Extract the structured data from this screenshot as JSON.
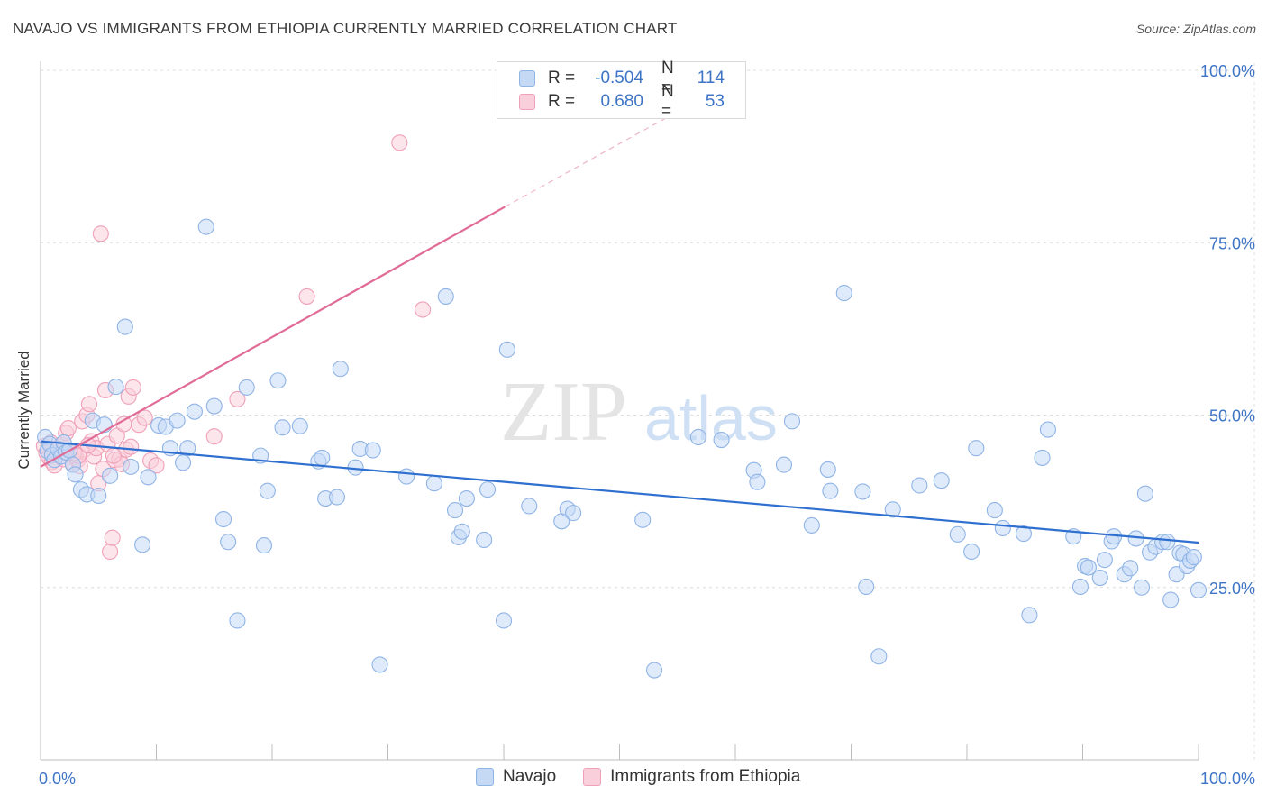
{
  "title": "NAVAJO VS IMMIGRANTS FROM ETHIOPIA CURRENTLY MARRIED CORRELATION CHART",
  "source": "Source: ZipAtlas.com",
  "watermark": {
    "zip": "ZIP",
    "atlas": "atlas"
  },
  "legend": {
    "rows": [
      {
        "r_label": "R =",
        "r_value": "-0.504",
        "n_label": "N =",
        "n_value": "114",
        "color": "#8fb4e6",
        "fill": "#c5d9f5"
      },
      {
        "r_label": "R =",
        "r_value": "0.680",
        "n_label": "N =",
        "n_value": "53",
        "color": "#f0a0b8",
        "fill": "#f9cfdb"
      }
    ]
  },
  "bottom_legend": [
    {
      "label": "Navajo",
      "color": "#8fb4e6",
      "fill": "#c5d9f5"
    },
    {
      "label": "Immigrants from Ethiopia",
      "color": "#f0a0b8",
      "fill": "#f9cfdb"
    }
  ],
  "chart_data": {
    "type": "scatter",
    "title": "NAVAJO VS IMMIGRANTS FROM ETHIOPIA CURRENTLY MARRIED CORRELATION CHART",
    "xlabel": "",
    "ylabel": "Currently Married",
    "xlim": [
      0,
      100
    ],
    "ylim": [
      0,
      100
    ],
    "x_tick_labels": [
      "0.0%",
      "100.0%"
    ],
    "y_tick_labels": [
      "25.0%",
      "50.0%",
      "75.0%",
      "100.0%"
    ],
    "y_ticks": [
      25,
      50,
      75,
      100
    ],
    "grid": true,
    "series": [
      {
        "name": "Navajo",
        "color": "#3d74c6",
        "point_fill": "#c5d9f5",
        "point_stroke": "#8fb4e6",
        "trend": {
          "x": [
            0,
            100
          ],
          "y": [
            46.2,
            31.5
          ],
          "color": "#2f6fd0"
        },
        "points": [
          [
            0.4,
            46.8
          ],
          [
            0.6,
            44.8
          ],
          [
            0.8,
            45.8
          ],
          [
            1.0,
            44.2
          ],
          [
            1.2,
            43.5
          ],
          [
            1.5,
            45.1
          ],
          [
            1.8,
            44.0
          ],
          [
            2.0,
            46.0
          ],
          [
            2.2,
            44.6
          ],
          [
            2.5,
            44.9
          ],
          [
            2.8,
            42.8
          ],
          [
            3.0,
            41.4
          ],
          [
            3.5,
            39.2
          ],
          [
            4.0,
            38.5
          ],
          [
            4.5,
            49.2
          ],
          [
            5.0,
            38.3
          ],
          [
            5.5,
            48.6
          ],
          [
            6.0,
            41.2
          ],
          [
            6.5,
            54.1
          ],
          [
            7.3,
            62.8
          ],
          [
            7.8,
            42.5
          ],
          [
            8.8,
            31.2
          ],
          [
            9.3,
            41.0
          ],
          [
            10.2,
            48.5
          ],
          [
            10.8,
            48.3
          ],
          [
            11.2,
            45.2
          ],
          [
            11.8,
            49.2
          ],
          [
            12.3,
            43.1
          ],
          [
            12.7,
            45.2
          ],
          [
            13.3,
            50.5
          ],
          [
            14.3,
            77.3
          ],
          [
            15.0,
            51.3
          ],
          [
            15.8,
            34.9
          ],
          [
            16.2,
            31.6
          ],
          [
            17.0,
            20.2
          ],
          [
            17.8,
            54.0
          ],
          [
            19.0,
            44.1
          ],
          [
            19.3,
            31.1
          ],
          [
            19.6,
            39.0
          ],
          [
            20.5,
            55.0
          ],
          [
            20.9,
            48.2
          ],
          [
            22.4,
            48.4
          ],
          [
            24.0,
            43.3
          ],
          [
            24.3,
            43.8
          ],
          [
            24.6,
            37.9
          ],
          [
            25.6,
            38.1
          ],
          [
            25.9,
            56.7
          ],
          [
            27.2,
            42.4
          ],
          [
            27.6,
            45.1
          ],
          [
            28.7,
            44.9
          ],
          [
            29.3,
            13.8
          ],
          [
            31.6,
            41.1
          ],
          [
            34.0,
            40.1
          ],
          [
            35.0,
            67.2
          ],
          [
            35.8,
            36.2
          ],
          [
            36.1,
            32.3
          ],
          [
            36.4,
            33.1
          ],
          [
            36.8,
            37.9
          ],
          [
            38.3,
            31.9
          ],
          [
            38.6,
            39.2
          ],
          [
            40.0,
            20.2
          ],
          [
            40.3,
            59.5
          ],
          [
            42.2,
            36.8
          ],
          [
            45.0,
            34.6
          ],
          [
            45.5,
            36.4
          ],
          [
            46.0,
            35.8
          ],
          [
            52.0,
            34.8
          ],
          [
            53.0,
            13.0
          ],
          [
            56.8,
            46.8
          ],
          [
            58.8,
            46.4
          ],
          [
            61.6,
            42.0
          ],
          [
            61.9,
            40.3
          ],
          [
            64.2,
            42.8
          ],
          [
            64.9,
            49.1
          ],
          [
            66.6,
            34.0
          ],
          [
            68.0,
            42.1
          ],
          [
            68.2,
            39.0
          ],
          [
            69.4,
            67.7
          ],
          [
            71.0,
            38.9
          ],
          [
            71.3,
            25.1
          ],
          [
            72.4,
            15.0
          ],
          [
            73.6,
            36.3
          ],
          [
            75.9,
            39.8
          ],
          [
            77.8,
            40.5
          ],
          [
            79.2,
            32.7
          ],
          [
            80.4,
            30.2
          ],
          [
            80.8,
            45.2
          ],
          [
            82.4,
            36.2
          ],
          [
            83.1,
            33.6
          ],
          [
            84.9,
            32.8
          ],
          [
            85.4,
            21.0
          ],
          [
            86.5,
            43.8
          ],
          [
            87.0,
            47.9
          ],
          [
            89.2,
            32.4
          ],
          [
            89.8,
            25.1
          ],
          [
            90.2,
            28.1
          ],
          [
            90.5,
            27.9
          ],
          [
            91.5,
            26.4
          ],
          [
            91.9,
            29.0
          ],
          [
            92.5,
            31.7
          ],
          [
            92.7,
            32.4
          ],
          [
            93.6,
            26.9
          ],
          [
            94.1,
            27.8
          ],
          [
            94.6,
            32.1
          ],
          [
            95.1,
            25.0
          ],
          [
            95.4,
            38.6
          ],
          [
            95.8,
            30.1
          ],
          [
            96.3,
            30.9
          ],
          [
            96.9,
            31.6
          ],
          [
            97.3,
            31.6
          ],
          [
            97.6,
            23.2
          ],
          [
            98.1,
            26.9
          ],
          [
            98.4,
            30.0
          ],
          [
            98.7,
            29.8
          ],
          [
            99.0,
            28.1
          ],
          [
            99.3,
            28.9
          ],
          [
            99.6,
            29.4
          ],
          [
            100.0,
            24.6
          ]
        ]
      },
      {
        "name": "Immigrants from Ethiopia",
        "color": "#e06b96",
        "point_fill": "#f9cfdb",
        "point_stroke": "#f0a0b8",
        "trend": {
          "x": [
            0,
            40.1
          ],
          "y": [
            42.5,
            80.2
          ],
          "dashed_to": {
            "x": 55,
            "y": 94.0
          },
          "color": "#e06b96"
        },
        "points": [
          [
            0.3,
            45.5
          ],
          [
            0.5,
            44.5
          ],
          [
            0.7,
            43.9
          ],
          [
            0.9,
            46.0
          ],
          [
            1.0,
            43.2
          ],
          [
            1.2,
            42.7
          ],
          [
            1.4,
            44.2
          ],
          [
            1.6,
            45.1
          ],
          [
            1.8,
            45.7
          ],
          [
            2.0,
            43.6
          ],
          [
            2.2,
            47.4
          ],
          [
            2.4,
            48.1
          ],
          [
            2.6,
            44.8
          ],
          [
            2.8,
            42.9
          ],
          [
            3.0,
            44.0
          ],
          [
            3.2,
            43.5
          ],
          [
            3.4,
            42.6
          ],
          [
            3.6,
            49.1
          ],
          [
            3.8,
            45.0
          ],
          [
            4.0,
            50.0
          ],
          [
            4.2,
            51.6
          ],
          [
            4.4,
            46.2
          ],
          [
            4.6,
            44.0
          ],
          [
            4.8,
            45.2
          ],
          [
            5.0,
            40.1
          ],
          [
            5.2,
            76.3
          ],
          [
            5.4,
            42.2
          ],
          [
            5.6,
            53.6
          ],
          [
            5.8,
            45.8
          ],
          [
            6.0,
            30.2
          ],
          [
            6.2,
            32.2
          ],
          [
            6.4,
            43.5
          ],
          [
            6.6,
            47.0
          ],
          [
            6.8,
            43.6
          ],
          [
            7.0,
            42.9
          ],
          [
            7.2,
            48.7
          ],
          [
            7.4,
            45.0
          ],
          [
            7.6,
            52.7
          ],
          [
            7.8,
            45.4
          ],
          [
            8.0,
            54.0
          ],
          [
            8.5,
            48.6
          ],
          [
            9.0,
            49.6
          ],
          [
            9.5,
            43.4
          ],
          [
            10.0,
            42.7
          ],
          [
            15.0,
            46.9
          ],
          [
            17.0,
            52.3
          ],
          [
            23.0,
            67.2
          ],
          [
            31.0,
            89.5
          ],
          [
            33.0,
            65.3
          ],
          [
            2.9,
            44.5
          ],
          [
            3.3,
            44.1
          ],
          [
            4.1,
            45.6
          ],
          [
            6.3,
            44.1
          ]
        ]
      }
    ]
  }
}
